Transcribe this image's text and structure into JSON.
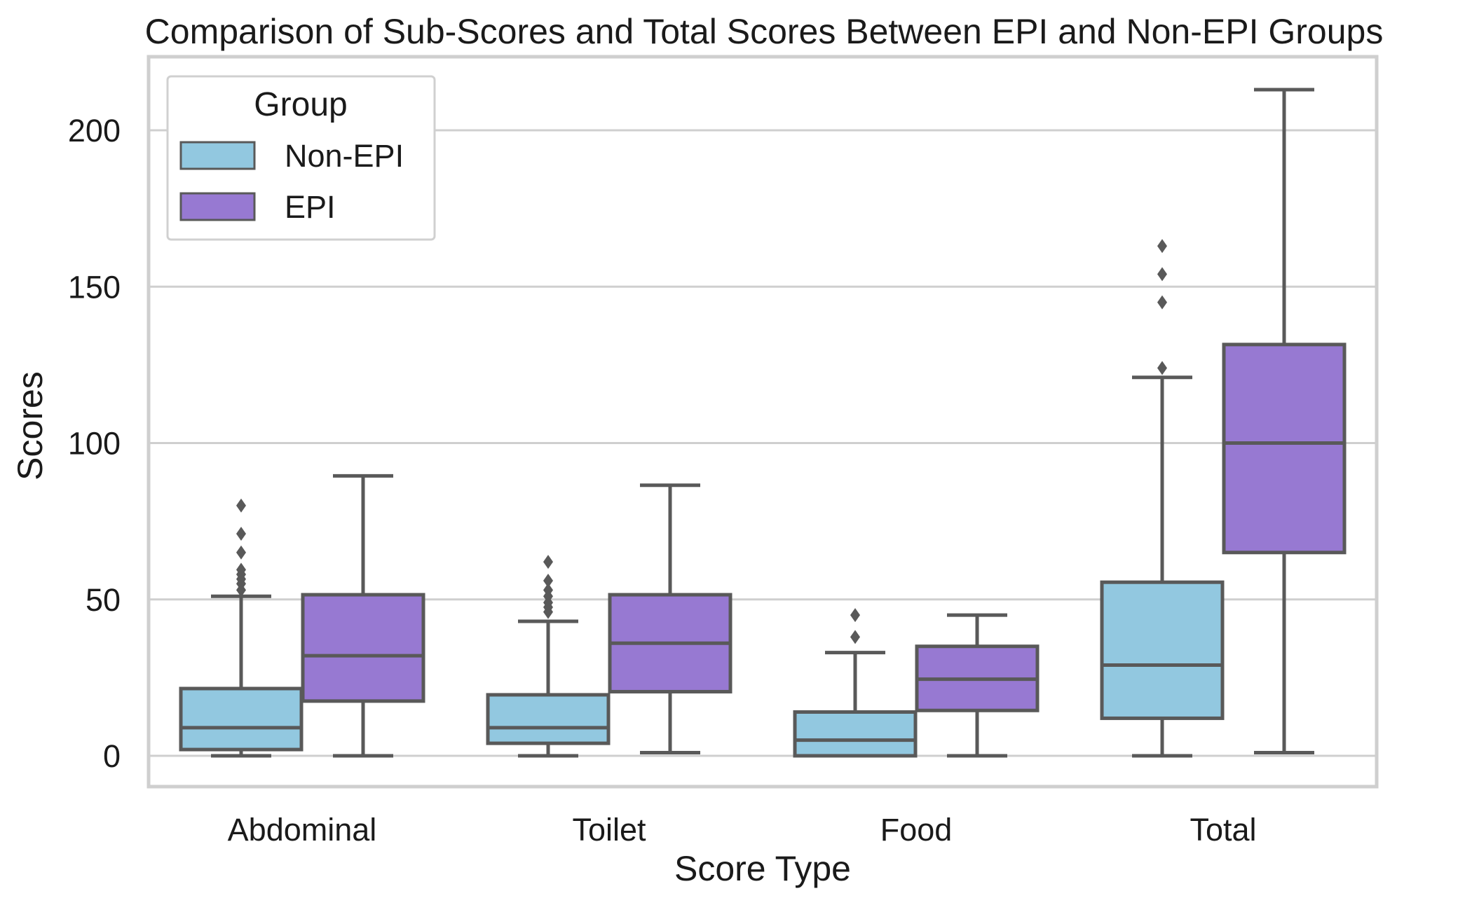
{
  "chart_data": {
    "type": "boxplot",
    "title": "Comparison of Sub-Scores and Total Scores Between EPI and Non-EPI Groups",
    "xlabel": "Score Type",
    "ylabel": "Scores",
    "categories": [
      "Abdominal",
      "Toilet",
      "Food",
      "Total"
    ],
    "ylim": [
      -10,
      220
    ],
    "yticks": [
      0,
      50,
      100,
      150,
      200
    ],
    "grid": true,
    "legend": {
      "title": "Group",
      "position": "top-left",
      "entries": [
        "Non-EPI",
        "EPI"
      ]
    },
    "colors": {
      "Non-EPI": "#92c8e0",
      "EPI": "#9779d2",
      "line": "#595959",
      "grid": "#cfcfcf",
      "frame": "#cfcfcf"
    },
    "series": [
      {
        "name": "Non-EPI",
        "boxes": [
          {
            "whislo": 0,
            "q1": 2,
            "med": 9,
            "q3": 21.5,
            "whishi": 51,
            "fliers": [
              53,
              55,
              56.5,
              58,
              59.5,
              65,
              71,
              80
            ]
          },
          {
            "whislo": 0,
            "q1": 4,
            "med": 9,
            "q3": 19.5,
            "whishi": 43,
            "fliers": [
              46,
              47.5,
              49,
              51,
              53,
              56,
              62
            ]
          },
          {
            "whislo": 0,
            "q1": 0,
            "med": 5,
            "q3": 14,
            "whishi": 33,
            "fliers": [
              38,
              45
            ]
          },
          {
            "whislo": 0,
            "q1": 12,
            "med": 29,
            "q3": 55.5,
            "whishi": 121,
            "fliers": [
              124,
              145,
              154,
              163
            ]
          }
        ]
      },
      {
        "name": "EPI",
        "boxes": [
          {
            "whislo": 0,
            "q1": 17.5,
            "med": 32,
            "q3": 51.5,
            "whishi": 89.5,
            "fliers": []
          },
          {
            "whislo": 1,
            "q1": 20.5,
            "med": 36,
            "q3": 51.5,
            "whishi": 86.5,
            "fliers": []
          },
          {
            "whislo": 0,
            "q1": 14.5,
            "med": 24.5,
            "q3": 35,
            "whishi": 45,
            "fliers": []
          },
          {
            "whislo": 1,
            "q1": 65,
            "med": 100,
            "q3": 131.5,
            "whishi": 213,
            "fliers": []
          }
        ]
      }
    ]
  }
}
